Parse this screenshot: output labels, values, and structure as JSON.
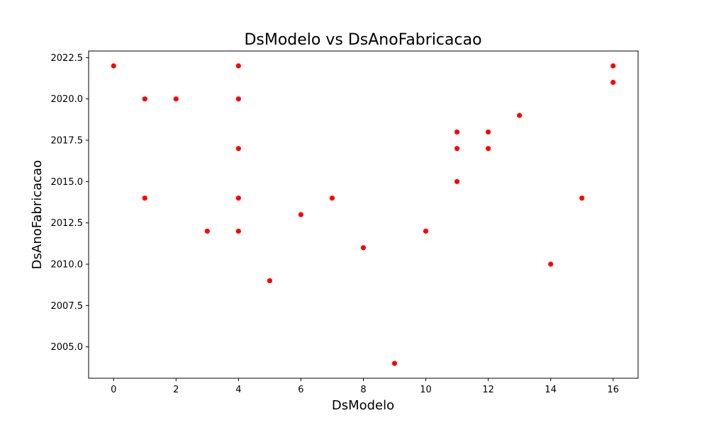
{
  "chart_data": {
    "type": "scatter",
    "title": "DsModelo vs DsAnoFabricacao",
    "xlabel": "DsModelo",
    "ylabel": "DsAnoFabricacao",
    "xlim": [
      -0.8,
      16.8
    ],
    "ylim": [
      2003.1,
      2022.9
    ],
    "xticks": [
      0,
      2,
      4,
      6,
      8,
      10,
      12,
      14,
      16
    ],
    "xtick_labels": [
      "0",
      "2",
      "4",
      "6",
      "8",
      "10",
      "12",
      "14",
      "16"
    ],
    "yticks": [
      2005.0,
      2007.5,
      2010.0,
      2012.5,
      2015.0,
      2017.5,
      2020.0,
      2022.5
    ],
    "ytick_labels": [
      "2005.0",
      "2007.5",
      "2010.0",
      "2012.5",
      "2015.0",
      "2017.5",
      "2020.0",
      "2022.5"
    ],
    "grid": false,
    "marker_color": "#ff0000",
    "points": [
      {
        "x": 0,
        "y": 2022
      },
      {
        "x": 1,
        "y": 2020
      },
      {
        "x": 1,
        "y": 2014
      },
      {
        "x": 2,
        "y": 2020
      },
      {
        "x": 3,
        "y": 2012
      },
      {
        "x": 4,
        "y": 2022
      },
      {
        "x": 4,
        "y": 2020
      },
      {
        "x": 4,
        "y": 2017
      },
      {
        "x": 4,
        "y": 2014
      },
      {
        "x": 4,
        "y": 2012
      },
      {
        "x": 5,
        "y": 2009
      },
      {
        "x": 6,
        "y": 2013
      },
      {
        "x": 7,
        "y": 2014
      },
      {
        "x": 8,
        "y": 2011
      },
      {
        "x": 9,
        "y": 2004
      },
      {
        "x": 10,
        "y": 2012
      },
      {
        "x": 11,
        "y": 2018
      },
      {
        "x": 11,
        "y": 2017
      },
      {
        "x": 11,
        "y": 2015
      },
      {
        "x": 12,
        "y": 2018
      },
      {
        "x": 12,
        "y": 2017
      },
      {
        "x": 13,
        "y": 2019
      },
      {
        "x": 14,
        "y": 2010
      },
      {
        "x": 15,
        "y": 2014
      },
      {
        "x": 16,
        "y": 2022
      },
      {
        "x": 16,
        "y": 2021
      }
    ]
  }
}
